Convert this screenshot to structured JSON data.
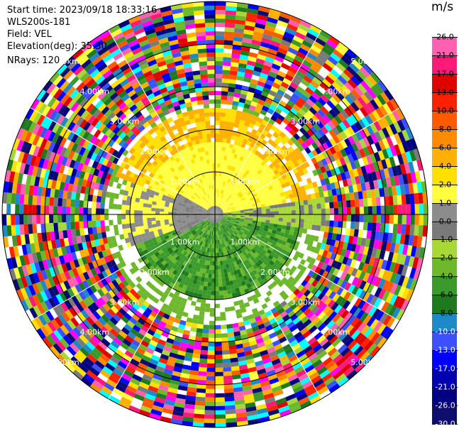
{
  "header": {
    "start_time": "Start time: 2023/09/18 18:33:16",
    "instrument": "WLS200s-181",
    "field": "Field: VEL",
    "elevation": "Elevation(deg): 35.30",
    "nrays": "NRays: 120"
  },
  "chart_data": {
    "type": "heatmap",
    "title": "",
    "projection": "polar-ppi",
    "field": "VEL",
    "units": "m/s",
    "n_rays": 120,
    "elevation_deg": 35.3,
    "range_rings_km": [
      1,
      2,
      3,
      4,
      5
    ],
    "ring_labels": [
      "1.00km",
      "2.00km",
      "3.00km",
      "4.00km",
      "5.00km"
    ],
    "max_range_km": 5.0,
    "colorbar": {
      "unit": "m/s",
      "bounds": [
        -30,
        -26,
        -21,
        -17,
        -13,
        -10,
        -8,
        -6,
        -4,
        -2,
        -1,
        0,
        1,
        2,
        4,
        6,
        8,
        10,
        13,
        17,
        21,
        26,
        30
      ],
      "tick_labels": [
        "26.0",
        "21.0",
        "17.0",
        "13.0",
        "10.0",
        "8.0",
        "6.0",
        "4.0",
        "2.0",
        "1.0",
        "0.0",
        "-1.0",
        "-2.0",
        "-4.0",
        "-6.0",
        "-8.0",
        "-10.0",
        "-13.0",
        "-17.0",
        "-21.0",
        "-26.0",
        "-30.0"
      ],
      "colors": [
        "#0d0d6e",
        "#000080",
        "#0000b0",
        "#0000ff",
        "#3c50ff",
        "#1e88c8",
        "#1f7a1f",
        "#3a9a2a",
        "#6eb82c",
        "#a8d838",
        "#7a7a7a",
        "#8c8c8c",
        "#ffff40",
        "#ffe000",
        "#ffb000",
        "#ff8c00",
        "#ff5a00",
        "#ff2000",
        "#e00000",
        "#ff1a7a",
        "#ff60b0",
        "#ffffff"
      ]
    },
    "description_regions": [
      {
        "range_km": [
          0.0,
          1.8
        ],
        "sector": "north",
        "value": 2.0
      },
      {
        "range_km": [
          1.8,
          2.6
        ],
        "sector": "north",
        "value": 6.0
      },
      {
        "range_km": [
          0.0,
          2.2
        ],
        "sector": "south",
        "value": -6.0
      },
      {
        "range_km": [
          0.0,
          1.0
        ],
        "sector": "near-origin-west",
        "value": 0.0
      },
      {
        "range_km": [
          2.6,
          5.0
        ],
        "sector": "all",
        "value": "noise"
      }
    ]
  }
}
